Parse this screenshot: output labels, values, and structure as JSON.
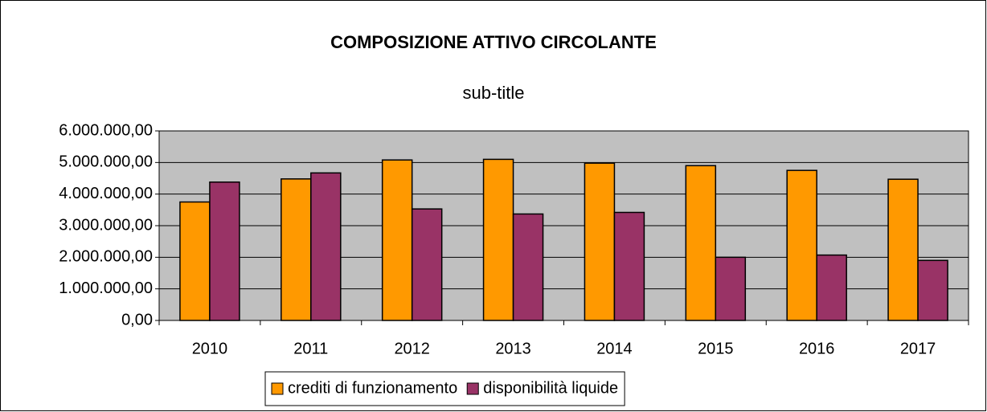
{
  "chart_data": {
    "type": "bar",
    "title": "COMPOSIZIONE ATTIVO CIRCOLANTE",
    "subtitle": "sub-title",
    "categories": [
      "2010",
      "2011",
      "2012",
      "2013",
      "2014",
      "2015",
      "2016",
      "2017"
    ],
    "series": [
      {
        "name": "crediti di funzionamento",
        "color": "#ff9900",
        "values": [
          3750000,
          4480000,
          5080000,
          5100000,
          4980000,
          4900000,
          4750000,
          4470000
        ]
      },
      {
        "name": "disponibilità liquide",
        "color": "#993366",
        "values": [
          4380000,
          4670000,
          3530000,
          3370000,
          3420000,
          2000000,
          2070000,
          1900000
        ]
      }
    ],
    "ylim": [
      0,
      6000000
    ],
    "yticks": [
      {
        "value": 0,
        "label": "0,00"
      },
      {
        "value": 1000000,
        "label": "1.000.000,00"
      },
      {
        "value": 2000000,
        "label": "2.000.000,00"
      },
      {
        "value": 3000000,
        "label": "3.000.000,00"
      },
      {
        "value": 4000000,
        "label": "4.000.000,00"
      },
      {
        "value": 5000000,
        "label": "5.000.000,00"
      },
      {
        "value": 6000000,
        "label": "6.000.000,00"
      }
    ],
    "grid": true,
    "legend": "bottom"
  }
}
